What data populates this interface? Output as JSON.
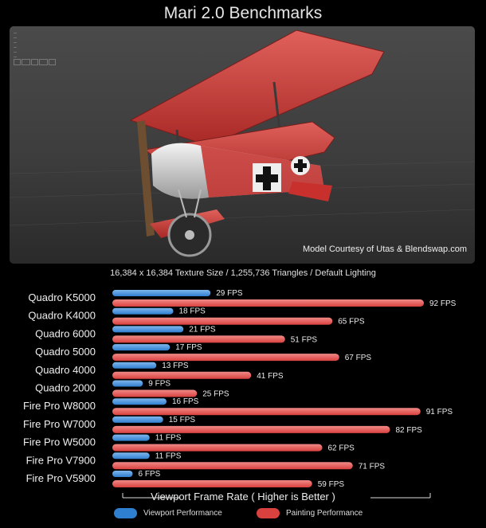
{
  "title": "Mari 2.0 Benchmarks",
  "viewport": {
    "credit": "Model Courtesy of Utas & Blendswap.com"
  },
  "subtitle": "16,384 x 16,384 Texture Size  /  1,255,736 Triangles  /  Default Lighting",
  "colors": {
    "viewport": "#2f7fd0",
    "painting": "#d9413f",
    "background": "#000000"
  },
  "chart_data": {
    "type": "bar",
    "orientation": "horizontal",
    "categories": [
      "Quadro K5000",
      "Quadro K4000",
      "Quadro 6000",
      "Quadro 5000",
      "Quadro 4000",
      "Quadro 2000",
      "Fire Pro W8000",
      "Fire Pro W7000",
      "Fire Pro W5000",
      "Fire Pro V7900",
      "Fire Pro V5900"
    ],
    "series": [
      {
        "name": "Viewport Performance",
        "values": [
          29,
          18,
          21,
          17,
          13,
          9,
          16,
          15,
          11,
          11,
          6
        ]
      },
      {
        "name": "Painting Performance",
        "values": [
          92,
          65,
          51,
          67,
          41,
          25,
          91,
          82,
          62,
          71,
          59
        ]
      }
    ],
    "value_suffix": "FPS",
    "xlabel": "Viewport Frame Rate ( Higher is Better )",
    "xlim": [
      0,
      100
    ],
    "grid": false,
    "legend_position": "bottom"
  }
}
